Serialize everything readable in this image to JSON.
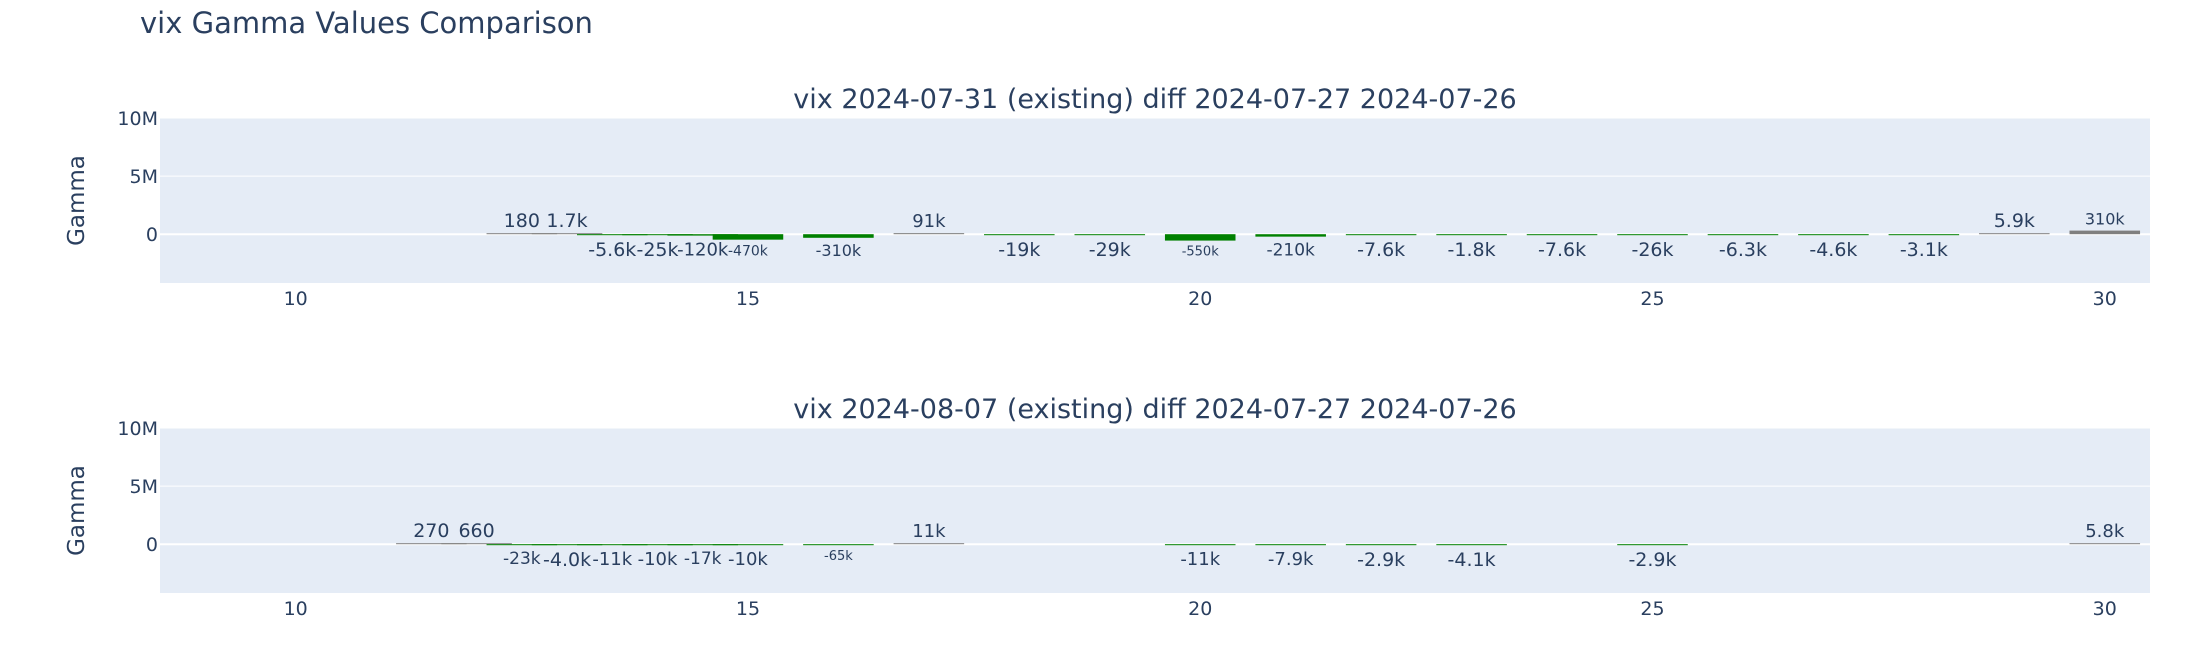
{
  "title": "vix Gamma Values Comparison",
  "colors": {
    "plot_bg": "#e5ecf6",
    "grid": "#ffffff",
    "text": "#2a3f5f",
    "positive": "#7f7f7f",
    "negative": "#008000"
  },
  "chart_data": [
    {
      "type": "bar",
      "title": "vix 2024-07-31 (existing) diff 2024-07-27 2024-07-26",
      "ylabel": "Gamma",
      "xlabel": "",
      "xlim": [
        8.5,
        30.5
      ],
      "ylim": [
        -4200000,
        10000000
      ],
      "ytick_labels": [
        "10M",
        "5M",
        "0"
      ],
      "ytick_values": [
        10000000,
        5000000,
        0
      ],
      "xtick_labels": [
        "10",
        "15",
        "20",
        "25",
        "30"
      ],
      "xtick_values": [
        10,
        15,
        20,
        25,
        30
      ],
      "grid": true,
      "x": [
        12.5,
        13,
        13.5,
        14,
        14.5,
        15,
        16,
        17,
        18,
        19,
        20,
        21,
        22,
        23,
        24,
        25,
        26,
        27,
        28,
        29,
        30
      ],
      "values": [
        180,
        1700,
        -5600,
        -25000,
        -120000,
        -470000,
        -310000,
        91000,
        -19000,
        -29000,
        -550000,
        -210000,
        -7600,
        -1800,
        -7600,
        -26000,
        -6300,
        -4600,
        -3100,
        5900,
        310000
      ],
      "labels": [
        "180",
        "1.7k",
        "-5.6k",
        "-25k",
        "-120k",
        "-470k",
        "-310k",
        "91k",
        "-19k",
        "-29k",
        "-550k",
        "-210k",
        "-7.6k",
        "-1.8k",
        "-7.6k",
        "-26k",
        "-6.3k",
        "-4.6k",
        "-3.1k",
        "5.9k",
        "310k"
      ]
    },
    {
      "type": "bar",
      "title": "vix 2024-08-07 (existing) diff 2024-07-27 2024-07-26",
      "ylabel": "Gamma",
      "xlabel": "",
      "xlim": [
        8.5,
        30.5
      ],
      "ylim": [
        -4200000,
        10000000
      ],
      "ytick_labels": [
        "10M",
        "5M",
        "0"
      ],
      "ytick_values": [
        10000000,
        5000000,
        0
      ],
      "xtick_labels": [
        "10",
        "15",
        "20",
        "25",
        "30"
      ],
      "xtick_values": [
        10,
        15,
        20,
        25,
        30
      ],
      "grid": true,
      "x": [
        11.5,
        12,
        12.5,
        13,
        13.5,
        14,
        14.5,
        15,
        16,
        17,
        20,
        21,
        22,
        23,
        25,
        30
      ],
      "values": [
        270,
        660,
        -23000,
        -4000,
        -11000,
        -10000,
        -17000,
        -10000,
        -65000,
        11000,
        -11000,
        -7900,
        -2900,
        -4100,
        -2900,
        5800
      ],
      "labels": [
        "270",
        "660",
        "-23k",
        "-4.0k",
        "-11k",
        "-10k",
        "-17k",
        "-10k",
        "-65k",
        "11k",
        "-11k",
        "-7.9k",
        "-2.9k",
        "-4.1k",
        "-2.9k",
        "5.8k"
      ]
    }
  ]
}
